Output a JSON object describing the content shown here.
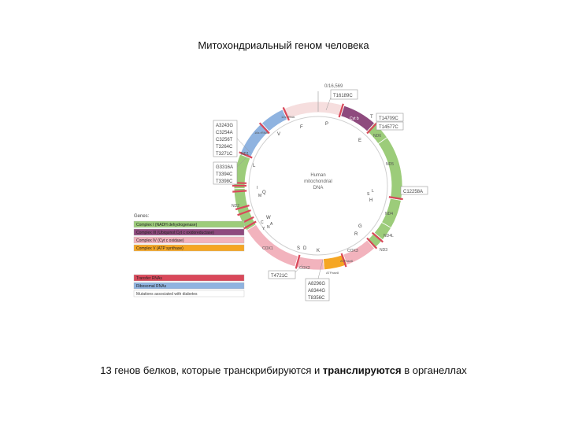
{
  "title": "Митохондриальный геном человека",
  "caption": {
    "part1": "13 генов белков, которые транскрибируются и",
    "bold": "транслируются",
    "part2": "в органеллах"
  },
  "colors": {
    "complex_i": "#9ccc7a",
    "complex_iii": "#8e4a7e",
    "complex_iv": "#f2b3bd",
    "complex_v": "#f5a623",
    "trna": "#d9485a",
    "rrna": "#8fb3e0",
    "noncoding": "#f6dede"
  },
  "diagram": {
    "center_label": [
      "Human",
      "mitochondrial",
      "DNA"
    ],
    "top_label": "0/16,569",
    "mutation_boxes": {
      "top": [
        "T16189C"
      ],
      "upper_left": [
        "A3243G",
        "C3254A",
        "C3256T",
        "T3264C",
        "T3271C"
      ],
      "mid_left": [
        "G3316A",
        "T3394C",
        "T3398C"
      ],
      "upper_right_a": [
        "T14709C"
      ],
      "upper_right_b": [
        "T14577C"
      ],
      "right": [
        "C12258A"
      ],
      "bottom_left": [
        "T4721C"
      ],
      "bottom": [
        "A8296G",
        "A8344G",
        "T8356C"
      ]
    },
    "gene_labels": {
      "cytb": "Cyt b",
      "nd6": "ND6",
      "nd5": "ND5",
      "nd4": "ND4",
      "nd4l": "ND4L",
      "nd3": "ND3",
      "cox3": "COX3",
      "atp6": "ATPase6",
      "atp8": "ATPase8",
      "cox2": "COX2",
      "cox1": "COX1",
      "nd2": "ND2",
      "nd1": "ND1",
      "rrna16s": "16s rRNA",
      "rrna12s": "12s rRNA"
    },
    "trna_letters": {
      "t": "T",
      "p": "P",
      "e": "E",
      "f": "F",
      "v": "V",
      "l": "L",
      "i": "I",
      "m": "M",
      "q": "Q",
      "w": "W",
      "a": "A",
      "n": "N",
      "c": "C",
      "y": "Y",
      "s": "S",
      "d": "D",
      "k": "K",
      "g": "G",
      "r": "R",
      "h": "H",
      "s2": "S",
      "l2": "L"
    }
  },
  "legend": {
    "heading": "Genes:",
    "items": [
      {
        "label": "Complex I (NADH dehydrogenase)",
        "color": "#9ccc7a"
      },
      {
        "label": "Complex III (Ubiquinol:Cyt c oxidoreductase)",
        "color": "#8e4a7e"
      },
      {
        "label": "Complex IV (Cyt c oxidase)",
        "color": "#f2b3bd"
      },
      {
        "label": "Complex V (ATP synthase)",
        "color": "#f5a623"
      }
    ],
    "items2": [
      {
        "label": "Transfer RNAs",
        "color": "#d9485a"
      },
      {
        "label": "Ribosomal RNAs",
        "color": "#8fb3e0"
      },
      {
        "label": "Mutations associated with diabetes",
        "color": "#ffffff"
      }
    ]
  }
}
